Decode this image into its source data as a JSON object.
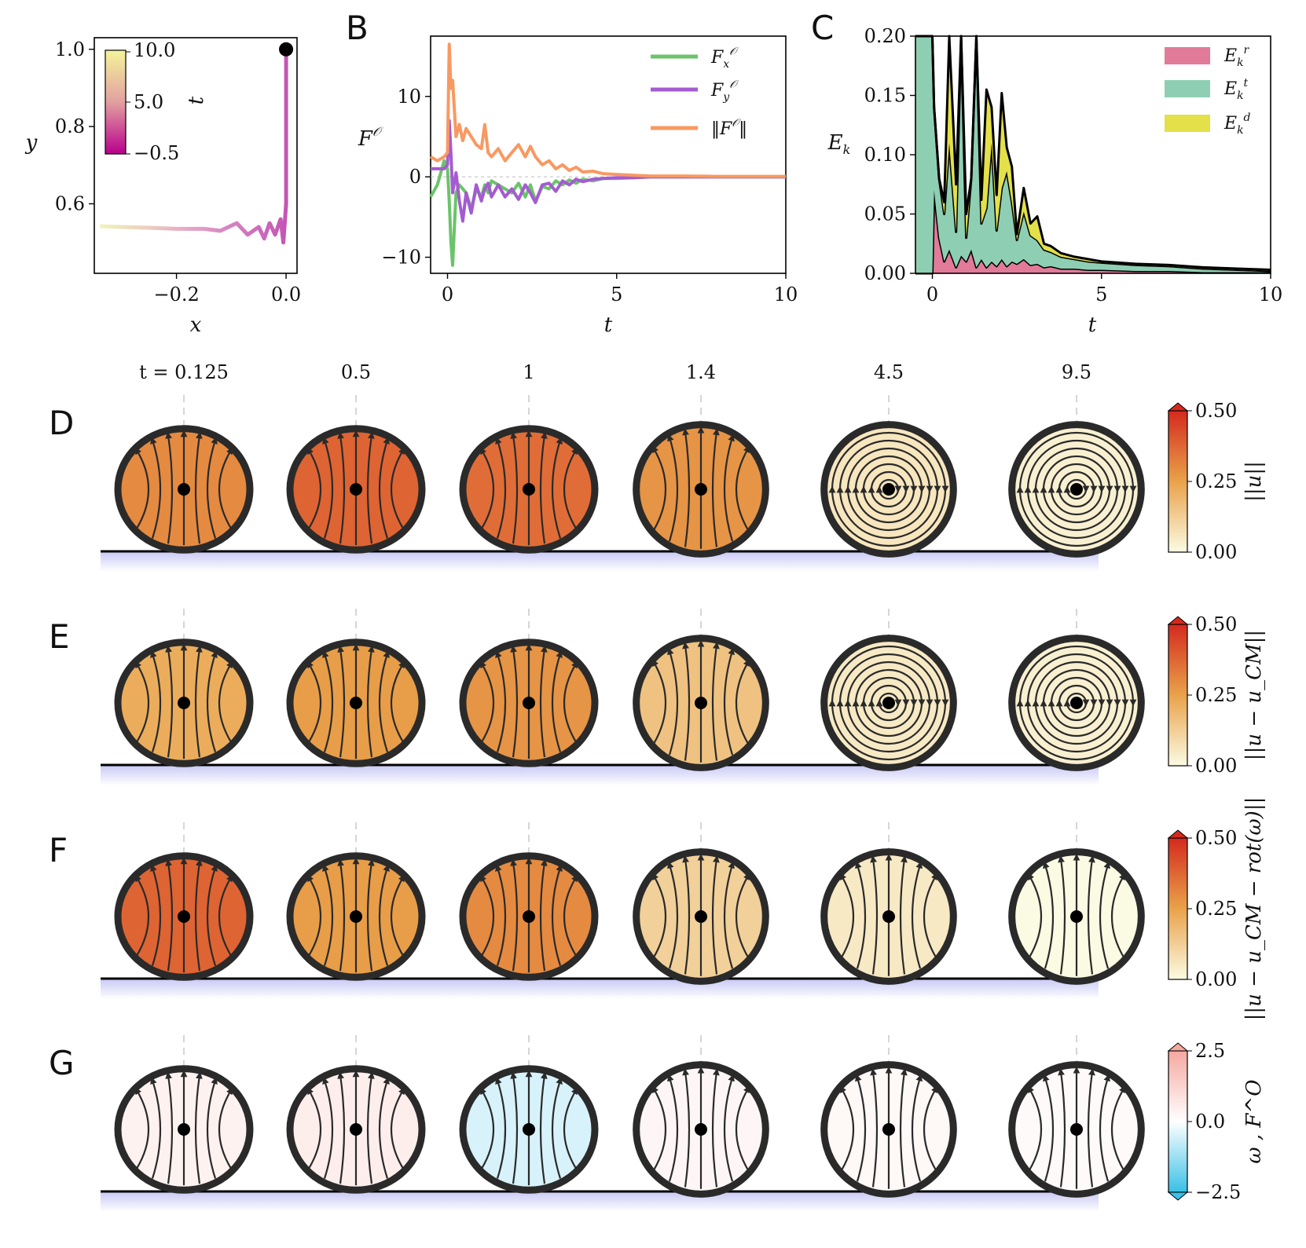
{
  "figure": {
    "panel_labels": [
      "B",
      "C",
      "D",
      "E",
      "F",
      "G"
    ],
    "colors": {
      "fx": "#6cc36a",
      "fy": "#a45bd1",
      "fnorm": "#f89962",
      "er": "#e27a9a",
      "et": "#8ecfb4",
      "ed": "#e3e04a",
      "cell_outline": "#2a2a2a",
      "wall": "#000000",
      "wall_shadow": "#c8c8f5",
      "traj_start": "#b8008c",
      "traj_end": "#f0f0a8",
      "marker": "#000000"
    }
  },
  "chart_data": [
    {
      "id": "A",
      "type": "line",
      "xlabel": "x",
      "ylabel": "y",
      "xlim": [
        -0.35,
        0.02
      ],
      "ylim": [
        0.42,
        1.03
      ],
      "xticks": [
        "−0.2",
        "0.0"
      ],
      "xtick_values": [
        -0.2,
        0.0
      ],
      "yticks": [
        "0.6",
        "0.8",
        "1.0"
      ],
      "ytick_values": [
        0.6,
        0.8,
        1.0
      ],
      "colorbar": {
        "label": "t",
        "ticks": [
          "10.0",
          "5.0",
          "−0.5"
        ],
        "tick_values": [
          10.0,
          5.0,
          -0.5
        ],
        "range": [
          -0.5,
          10.0
        ]
      },
      "trajectory": {
        "x": [
          0.0,
          0.0,
          0.0,
          -0.005,
          -0.01,
          -0.02,
          -0.03,
          -0.04,
          -0.05,
          -0.07,
          -0.09,
          -0.12,
          -0.15,
          -0.2,
          -0.25,
          -0.3,
          -0.34
        ],
        "y": [
          1.0,
          0.8,
          0.6,
          0.5,
          0.56,
          0.52,
          0.55,
          0.51,
          0.54,
          0.52,
          0.55,
          0.53,
          0.535,
          0.535,
          0.538,
          0.54,
          0.542
        ]
      },
      "marker": {
        "x": 0.0,
        "y": 1.0
      }
    },
    {
      "id": "B",
      "type": "line",
      "xlabel": "t",
      "ylabel": "F^O",
      "xlim": [
        -0.5,
        10
      ],
      "ylim": [
        -12,
        17.5
      ],
      "xticks": [
        "0",
        "5",
        "10"
      ],
      "xtick_values": [
        0,
        5,
        10
      ],
      "yticks": [
        "−10",
        "0",
        "10"
      ],
      "ytick_values": [
        -10,
        0,
        10
      ],
      "x": [
        -0.5,
        -0.3,
        -0.1,
        0.0,
        0.05,
        0.1,
        0.15,
        0.25,
        0.35,
        0.45,
        0.55,
        0.7,
        0.85,
        1.0,
        1.1,
        1.2,
        1.3,
        1.5,
        1.7,
        1.9,
        2.1,
        2.3,
        2.45,
        2.6,
        2.8,
        3.0,
        3.2,
        3.4,
        3.6,
        3.8,
        4.0,
        4.3,
        4.6,
        5.0,
        5.5,
        6.0,
        7.0,
        8.0,
        9.0,
        10.0
      ],
      "series": [
        {
          "name": "F_x^O",
          "values": [
            -2.5,
            -1.0,
            2.0,
            1.0,
            -3.0,
            -8.0,
            -11.0,
            -2.0,
            -1.0,
            -1.5,
            -2.0,
            -4.0,
            -1.5,
            -2.5,
            -1.0,
            -2.0,
            -0.5,
            -1.0,
            -1.5,
            -2.0,
            -0.8,
            -2.5,
            -1.0,
            -3.0,
            -1.2,
            -1.5,
            -0.5,
            -1.0,
            -0.4,
            -0.8,
            -0.3,
            -0.5,
            -0.2,
            -0.2,
            -0.1,
            0.0,
            0.0,
            0.0,
            0.0,
            0.0
          ]
        },
        {
          "name": "F_y^O",
          "values": [
            1.0,
            1.0,
            1.0,
            1.5,
            7.0,
            3.0,
            -2.0,
            0.5,
            -3.0,
            -5.5,
            -2.0,
            -4.5,
            -1.0,
            -3.0,
            -1.5,
            -0.8,
            -2.5,
            -1.0,
            -2.5,
            -1.5,
            -2.8,
            -1.0,
            -2.0,
            -3.2,
            -1.0,
            -0.8,
            -1.8,
            -0.5,
            -1.0,
            -0.3,
            -0.6,
            -0.3,
            -0.2,
            -0.1,
            -0.1,
            0.0,
            0.0,
            0.0,
            0.0,
            0.0
          ]
        },
        {
          "name": "‖F^O‖",
          "values": [
            2.5,
            2.0,
            2.5,
            3.0,
            16.5,
            11.0,
            12.0,
            5.0,
            6.5,
            4.5,
            6.0,
            5.0,
            4.0,
            3.5,
            6.5,
            3.0,
            2.5,
            3.5,
            2.0,
            3.0,
            4.0,
            2.5,
            3.8,
            2.5,
            1.5,
            2.0,
            1.0,
            1.5,
            0.8,
            1.2,
            0.6,
            0.7,
            0.4,
            0.3,
            0.2,
            0.1,
            0.1,
            0.05,
            0.05,
            0.05
          ]
        }
      ]
    },
    {
      "id": "C",
      "type": "area",
      "xlabel": "t",
      "ylabel": "E_k",
      "xlim": [
        -0.5,
        10
      ],
      "ylim": [
        0.0,
        0.2
      ],
      "xticks": [
        "0",
        "5",
        "10"
      ],
      "xtick_values": [
        0,
        5,
        10
      ],
      "yticks": [
        "0.00",
        "0.05",
        "0.10",
        "0.15",
        "0.20"
      ],
      "ytick_values": [
        0.0,
        0.05,
        0.1,
        0.15,
        0.2
      ],
      "x": [
        -0.5,
        0.0,
        0.05,
        0.2,
        0.35,
        0.5,
        0.7,
        0.85,
        1.0,
        1.15,
        1.3,
        1.45,
        1.6,
        1.75,
        1.9,
        2.05,
        2.2,
        2.35,
        2.5,
        2.7,
        2.9,
        3.1,
        3.3,
        3.5,
        3.8,
        4.2,
        4.6,
        5.0,
        6.0,
        7.0,
        8.0,
        9.0,
        10.0
      ],
      "series": [
        {
          "name": "E_k^r",
          "values": [
            0.0,
            0.0,
            0.07,
            0.03,
            0.01,
            0.02,
            0.005,
            0.015,
            0.01,
            0.02,
            0.005,
            0.012,
            0.005,
            0.01,
            0.006,
            0.012,
            0.006,
            0.01,
            0.008,
            0.012,
            0.007,
            0.008,
            0.005,
            0.006,
            0.004,
            0.004,
            0.003,
            0.003,
            0.002,
            0.002,
            0.001,
            0.001,
            0.001
          ]
        },
        {
          "name": "E_k^t",
          "values": [
            0.22,
            0.22,
            0.07,
            0.05,
            0.04,
            0.09,
            0.03,
            0.2,
            0.02,
            0.06,
            0.2,
            0.03,
            0.05,
            0.1,
            0.03,
            0.06,
            0.08,
            0.05,
            0.02,
            0.04,
            0.025,
            0.02,
            0.015,
            0.012,
            0.01,
            0.008,
            0.007,
            0.006,
            0.005,
            0.004,
            0.003,
            0.002,
            0.001
          ]
        },
        {
          "name": "E_k^d",
          "values": [
            0.0,
            0.0,
            0.0,
            0.0,
            0.01,
            0.1,
            0.04,
            0.0,
            0.02,
            0.0,
            0.0,
            0.02,
            0.1,
            0.03,
            0.03,
            0.08,
            0.02,
            0.03,
            0.005,
            0.02,
            0.01,
            0.02,
            0.005,
            0.005,
            0.003,
            0.002,
            0.002,
            0.001,
            0.001,
            0.001,
            0.001,
            0.001,
            0.001
          ]
        }
      ],
      "legend_position": "top-right"
    }
  ],
  "snapshots": {
    "times": [
      "t = 0.125",
      "0.5",
      "1",
      "1.4",
      "4.5",
      "9.5"
    ],
    "rows": [
      {
        "label": "D",
        "colorbar_label": "||u||",
        "ticks": [
          "0.50",
          "0.25",
          "0.00"
        ],
        "max": "#d42a1e",
        "mid": "#e9a24a",
        "min": "#fbfbe3",
        "levels": [
          0.3,
          0.38,
          0.36,
          0.28,
          0.06,
          0.03
        ]
      },
      {
        "label": "E",
        "colorbar_label": "||u − u_CM||",
        "ticks": [
          "0.50",
          "0.25",
          "0.00"
        ],
        "max": "#d42a1e",
        "mid": "#e9a24a",
        "min": "#fbfbe3",
        "levels": [
          0.22,
          0.26,
          0.28,
          0.16,
          0.05,
          0.03
        ]
      },
      {
        "label": "F",
        "colorbar_label": "||u − u_CM − rot(ω)||",
        "ticks": [
          "0.50",
          "0.25",
          "0.00"
        ],
        "max": "#d42a1e",
        "mid": "#e9a24a",
        "min": "#fbfbe3",
        "levels": [
          0.38,
          0.26,
          0.3,
          0.12,
          0.05,
          0.0
        ]
      },
      {
        "label": "G",
        "colorbar_label": "ω , F^O",
        "ticks": [
          "2.5",
          "0.0",
          "−2.5"
        ],
        "max": "#f5a8a0",
        "mid": "#ffffff",
        "min": "#39c0e6",
        "levels": [
          0.15,
          0.2,
          -0.2,
          0.1,
          0.08,
          0.06
        ]
      }
    ]
  }
}
